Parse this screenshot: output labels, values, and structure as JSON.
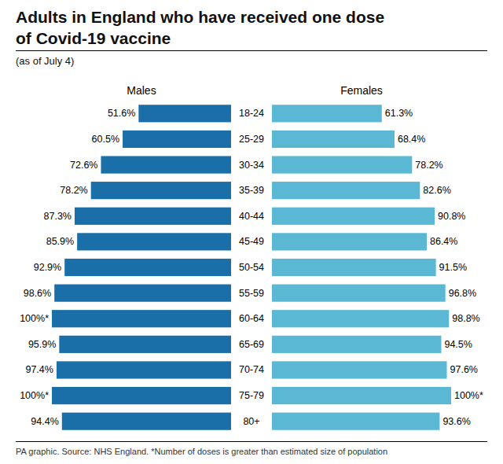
{
  "chart_data": {
    "type": "bar",
    "orientation": "horizontal",
    "title": "Adults in England who have received one dose of Covid-19 vaccine",
    "subtitle": "(as of July 4)",
    "annotations": [
      "PA graphic. Source: NHS England. *Number of doses is greater than estimated size of population"
    ],
    "categories": [
      "18-24",
      "25-29",
      "30-34",
      "35-39",
      "40-44",
      "45-49",
      "50-54",
      "55-59",
      "60-64",
      "65-69",
      "70-74",
      "75-79",
      "80+"
    ],
    "series": [
      {
        "name": "Males",
        "color": "#1a6fa8",
        "values": [
          51.6,
          60.5,
          72.6,
          78.2,
          87.3,
          85.9,
          92.9,
          98.6,
          100.0,
          95.9,
          97.4,
          100.0,
          94.4
        ],
        "value_labels": [
          "51.6%",
          "60.5%",
          "72.6%",
          "78.2%",
          "87.3%",
          "85.9%",
          "92.9%",
          "98.6%",
          "100%*",
          "95.9%",
          "97.4%",
          "100%*",
          "94.4%"
        ]
      },
      {
        "name": "Females",
        "color": "#5bb8d4",
        "values": [
          61.3,
          68.4,
          78.2,
          82.6,
          90.8,
          86.4,
          91.5,
          96.8,
          98.8,
          94.5,
          97.6,
          100.0,
          93.6
        ],
        "value_labels": [
          "61.3%",
          "68.4%",
          "78.2%",
          "82.6%",
          "90.8%",
          "86.4%",
          "91.5%",
          "96.8%",
          "98.8%",
          "94.5%",
          "97.6%",
          "100%*",
          "93.6%"
        ]
      }
    ],
    "xlim": [
      0,
      100
    ],
    "tick_labels": false,
    "grid": false,
    "data_labels": true
  }
}
